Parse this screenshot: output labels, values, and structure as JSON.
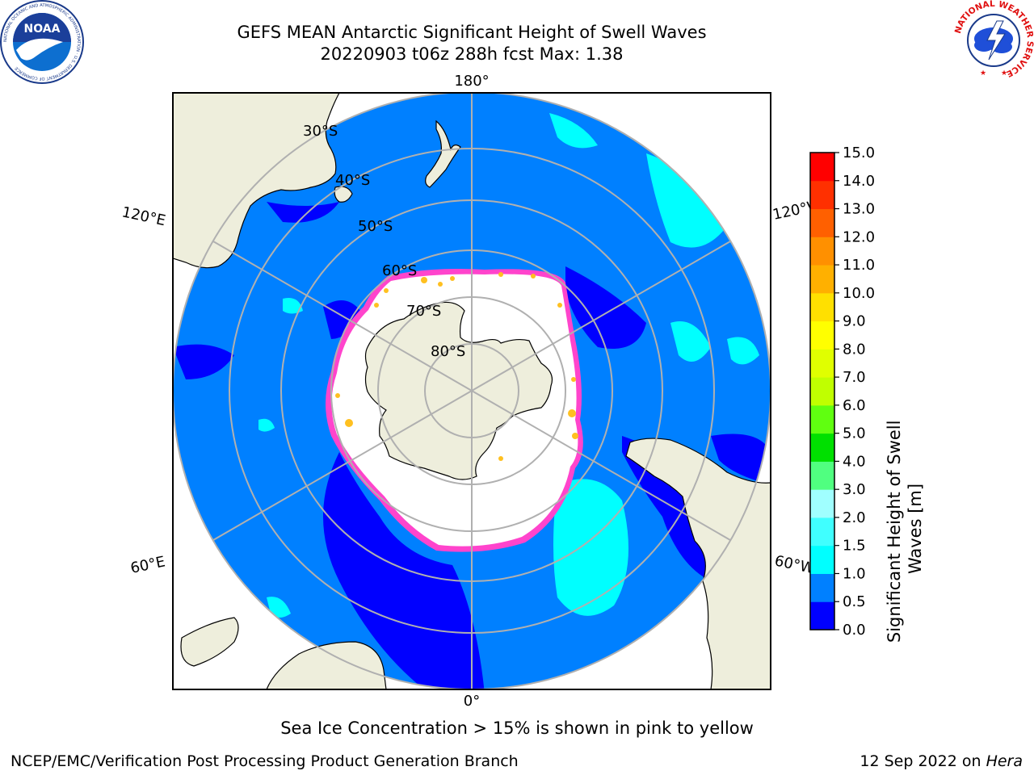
{
  "header": {
    "title_line1": "GEFS MEAN Antarctic Significant Height of Swell Waves",
    "title_line2": "20220903 t06z 288h fcst   Max: 1.38",
    "noaa_logo_text": "NOAA",
    "noaa_logo_ring_text": "NATIONAL OCEANIC AND ATMOSPHERIC ADMINISTRATION · U.S. DEPARTMENT OF COMMERCE",
    "nws_logo_ring_text": "NATIONAL WEATHER SERVICE"
  },
  "map": {
    "longitude_labels": {
      "top": "180°",
      "bottom": "0°",
      "upper_left": "120°E",
      "upper_right": "120°W",
      "lower_left": "60°E",
      "lower_right": "60°W"
    },
    "latitude_labels": [
      "30°S",
      "40°S",
      "50°S",
      "60°S",
      "70°S",
      "80°S"
    ],
    "colors": {
      "land": "#eeeedc",
      "ocean_low": "#0000ff",
      "ocean_mid": "#0080ff",
      "ocean_high": "#00ffff",
      "ice_edge_pink": "#ff44cc",
      "ice_edge_yellow": "#ffc020",
      "grid": "#b0b0b0"
    }
  },
  "colorbar": {
    "label": "Significant Height of Swell Waves [m]",
    "label_line1": "Significant Height of Swell",
    "label_line2": "Waves [m]",
    "ticks": [
      "0.0",
      "0.5",
      "1.0",
      "1.5",
      "2.0",
      "3.0",
      "4.0",
      "5.0",
      "6.0",
      "7.0",
      "8.0",
      "9.0",
      "10.0",
      "11.0",
      "12.0",
      "13.0",
      "14.0",
      "15.0"
    ],
    "bins": [
      {
        "from": 0.0,
        "to": 0.5,
        "color": "#0000ff"
      },
      {
        "from": 0.5,
        "to": 1.0,
        "color": "#0080ff"
      },
      {
        "from": 1.0,
        "to": 1.5,
        "color": "#00ffff"
      },
      {
        "from": 1.5,
        "to": 2.0,
        "color": "#40ffff"
      },
      {
        "from": 2.0,
        "to": 3.0,
        "color": "#a0ffff"
      },
      {
        "from": 3.0,
        "to": 4.0,
        "color": "#50ff80"
      },
      {
        "from": 4.0,
        "to": 5.0,
        "color": "#00e000"
      },
      {
        "from": 5.0,
        "to": 6.0,
        "color": "#60ff10"
      },
      {
        "from": 6.0,
        "to": 7.0,
        "color": "#c0ff00"
      },
      {
        "from": 7.0,
        "to": 8.0,
        "color": "#e0ff00"
      },
      {
        "from": 8.0,
        "to": 9.0,
        "color": "#ffff00"
      },
      {
        "from": 9.0,
        "to": 10.0,
        "color": "#ffe000"
      },
      {
        "from": 10.0,
        "to": 11.0,
        "color": "#ffb000"
      },
      {
        "from": 11.0,
        "to": 12.0,
        "color": "#ff9000"
      },
      {
        "from": 12.0,
        "to": 13.0,
        "color": "#ff6000"
      },
      {
        "from": 13.0,
        "to": 14.0,
        "color": "#ff3000"
      },
      {
        "from": 14.0,
        "to": 15.0,
        "color": "#ff0000"
      }
    ]
  },
  "footer": {
    "caption": "Sea Ice Concentration > 15% is shown in pink to yellow",
    "branch": "NCEP/EMC/Verification Post Processing Product Generation Branch",
    "date_prefix": "12 Sep 2022 on ",
    "machine": "Hera"
  }
}
